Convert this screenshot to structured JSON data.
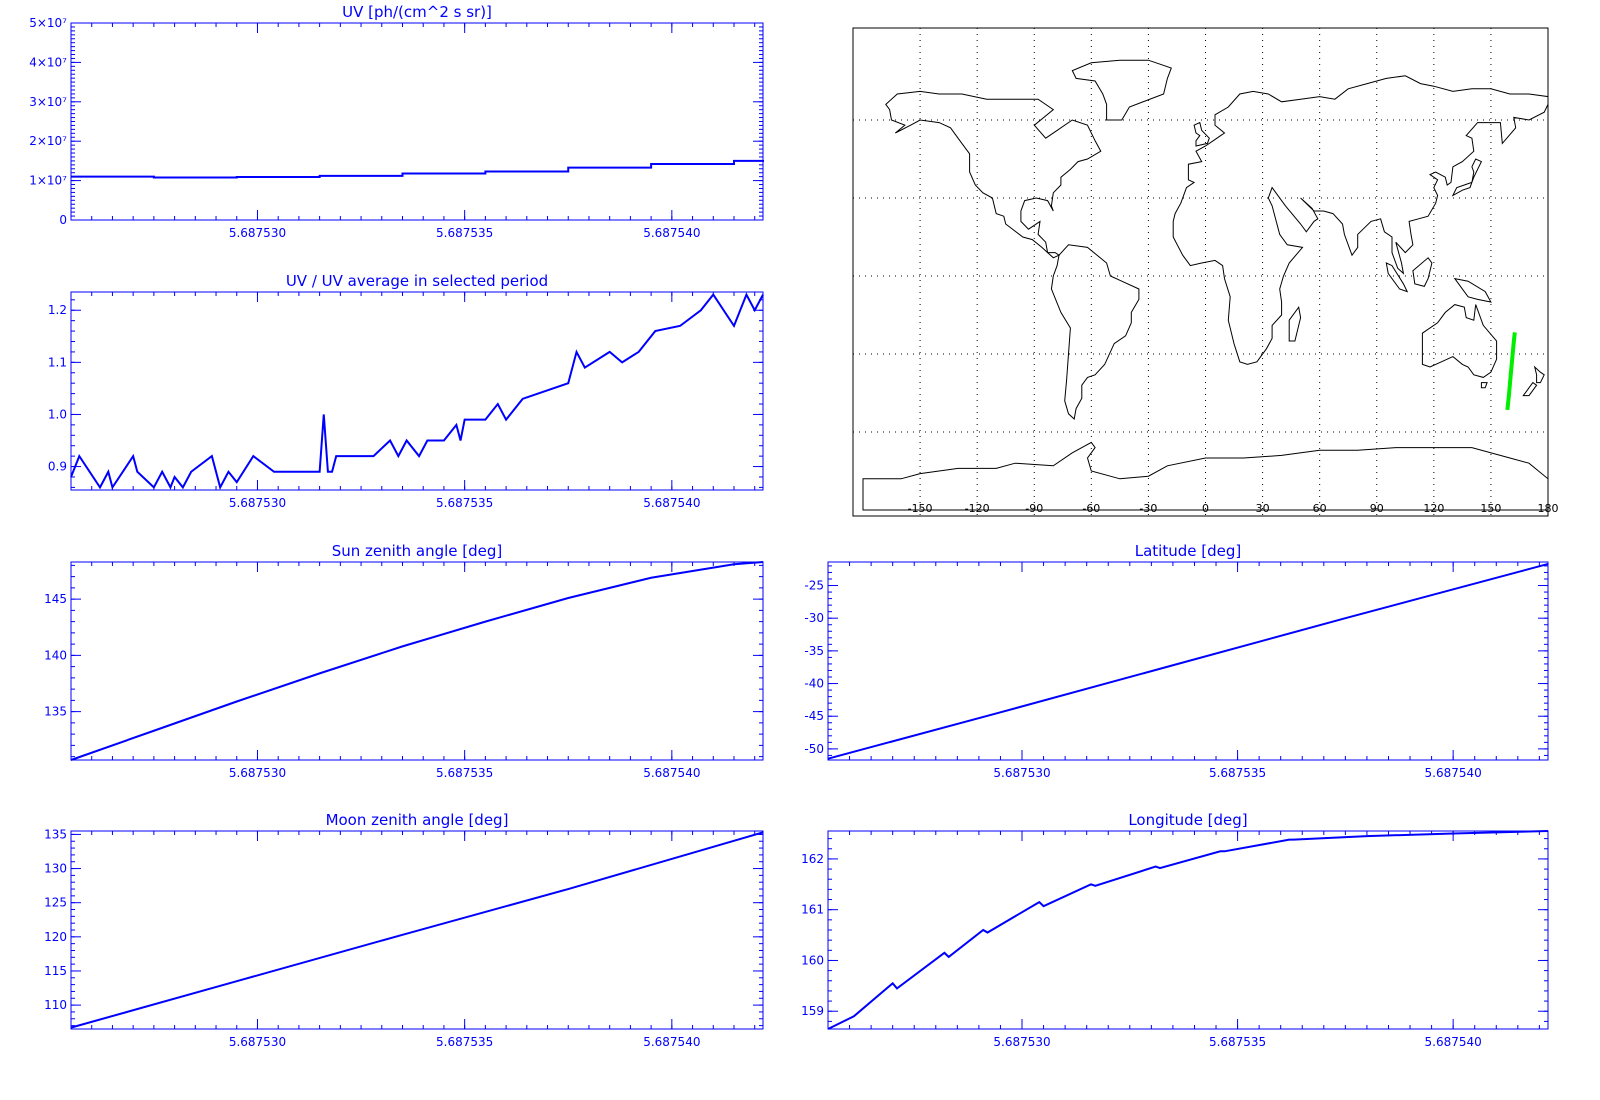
{
  "chart_data": [
    {
      "id": "uv",
      "type": "line",
      "step": true,
      "title": "UV [ph/(cm^2 s sr)]",
      "xlim": [
        5.6875255,
        5.6875422
      ],
      "ylim": [
        0,
        50000000
      ],
      "xticks": [
        5.68753,
        5.687535,
        5.68754
      ],
      "xticklabels": [
        "5.687530",
        "5.687535",
        "5.687540"
      ],
      "yticks": [
        0,
        10000000,
        20000000,
        30000000,
        40000000,
        50000000
      ],
      "yticklabels": [
        "0",
        "1×10⁷",
        "2×10⁷",
        "3×10⁷",
        "4×10⁷",
        "5×10⁷"
      ],
      "x": [
        5.6875255,
        5.6875275,
        5.6875295,
        5.6875315,
        5.6875335,
        5.6875355,
        5.6875375,
        5.6875395,
        5.6875415,
        5.6875422
      ],
      "y": [
        11000000,
        10800000,
        10900000,
        11200000,
        11800000,
        12300000,
        13300000,
        14200000,
        15000000,
        15200000
      ]
    },
    {
      "id": "uv-ratio",
      "type": "line",
      "title": "UV / UV average in selected period",
      "xlim": [
        5.6875255,
        5.6875422
      ],
      "ylim": [
        0.855,
        1.235
      ],
      "xticks": [
        5.68753,
        5.687535,
        5.68754
      ],
      "xticklabels": [
        "5.687530",
        "5.687535",
        "5.687540"
      ],
      "yticks": [
        0.9,
        1.0,
        1.1,
        1.2
      ],
      "yticklabels": [
        "0.9",
        "1.0",
        "1.1",
        "1.2"
      ],
      "x": [
        5.6875255,
        5.6875257,
        5.6875262,
        5.6875264,
        5.6875265,
        5.687527,
        5.6875271,
        5.6875275,
        5.6875277,
        5.6875279,
        5.687528,
        5.6875282,
        5.6875284,
        5.6875289,
        5.6875291,
        5.6875293,
        5.6875295,
        5.6875299,
        5.6875304,
        5.6875306,
        5.6875309,
        5.6875315,
        5.6875316,
        5.6875317,
        5.6875318,
        5.6875319,
        5.6875321,
        5.6875328,
        5.6875332,
        5.6875334,
        5.6875336,
        5.6875339,
        5.6875341,
        5.6875345,
        5.6875348,
        5.6875349,
        5.687535,
        5.6875355,
        5.6875358,
        5.687536,
        5.6875364,
        5.6875375,
        5.6875377,
        5.6875379,
        5.6875385,
        5.6875388,
        5.6875392,
        5.6875396,
        5.6875402,
        5.6875407,
        5.687541,
        5.6875415,
        5.6875418,
        5.687542,
        5.6875422
      ],
      "y": [
        0.88,
        0.92,
        0.86,
        0.89,
        0.86,
        0.92,
        0.89,
        0.86,
        0.89,
        0.86,
        0.88,
        0.86,
        0.89,
        0.92,
        0.86,
        0.89,
        0.87,
        0.92,
        0.89,
        0.89,
        0.89,
        0.89,
        1.0,
        0.89,
        0.89,
        0.92,
        0.92,
        0.92,
        0.95,
        0.92,
        0.95,
        0.92,
        0.95,
        0.95,
        0.98,
        0.95,
        0.99,
        0.99,
        1.02,
        0.99,
        1.03,
        1.06,
        1.12,
        1.09,
        1.12,
        1.1,
        1.12,
        1.16,
        1.17,
        1.2,
        1.23,
        1.17,
        1.23,
        1.2,
        1.23
      ]
    },
    {
      "id": "sun-zenith",
      "type": "line",
      "title": "Sun zenith angle [deg]",
      "xlim": [
        5.6875255,
        5.6875422
      ],
      "ylim": [
        130.7,
        148.3
      ],
      "xticks": [
        5.68753,
        5.687535,
        5.68754
      ],
      "xticklabels": [
        "5.687530",
        "5.687535",
        "5.687540"
      ],
      "yticks": [
        135,
        140,
        145
      ],
      "yticklabels": [
        "135",
        "140",
        "145"
      ],
      "x": [
        5.6875255,
        5.6875275,
        5.6875295,
        5.6875315,
        5.6875335,
        5.6875355,
        5.6875375,
        5.6875395,
        5.6875415,
        5.6875422
      ],
      "y": [
        130.7,
        133.3,
        135.9,
        138.4,
        140.8,
        143.0,
        145.1,
        146.9,
        148.1,
        148.3
      ]
    },
    {
      "id": "moon-zenith",
      "type": "line",
      "title": "Moon zenith angle [deg]",
      "xlim": [
        5.6875255,
        5.6875422
      ],
      "ylim": [
        106.5,
        135.5
      ],
      "xticks": [
        5.68753,
        5.687535,
        5.68754
      ],
      "xticklabels": [
        "5.687530",
        "5.687535",
        "5.687540"
      ],
      "yticks": [
        110,
        115,
        120,
        125,
        130,
        135
      ],
      "yticklabels": [
        "110",
        "115",
        "120",
        "125",
        "130",
        "135"
      ],
      "x": [
        5.6875255,
        5.6875295,
        5.6875335,
        5.6875375,
        5.6875422
      ],
      "y": [
        106.7,
        113.5,
        120.3,
        127.0,
        135.3
      ]
    },
    {
      "id": "latitude",
      "type": "line",
      "title": "Latitude [deg]",
      "xlim": [
        5.6875255,
        5.6875422
      ],
      "ylim": [
        -51.7,
        -21.4
      ],
      "xticks": [
        5.68753,
        5.687535,
        5.68754
      ],
      "xticklabels": [
        "5.687530",
        "5.687535",
        "5.687540"
      ],
      "yticks": [
        -50,
        -45,
        -40,
        -35,
        -30,
        -25
      ],
      "yticklabels": [
        "-50",
        "-45",
        "-40",
        "-35",
        "-30",
        "-25"
      ],
      "x": [
        5.6875255,
        5.6875295,
        5.6875335,
        5.6875375,
        5.6875422
      ],
      "y": [
        -51.5,
        -44.4,
        -37.2,
        -30.0,
        -21.7
      ]
    },
    {
      "id": "longitude",
      "type": "line",
      "title": "Longitude [deg]",
      "xlim": [
        5.6875255,
        5.6875422
      ],
      "ylim": [
        158.65,
        162.55
      ],
      "xticks": [
        5.68753,
        5.687535,
        5.68754
      ],
      "xticklabels": [
        "5.687530",
        "5.687535",
        "5.687540"
      ],
      "yticks": [
        159,
        160,
        161,
        162
      ],
      "yticklabels": [
        "159",
        "160",
        "161",
        "162"
      ],
      "x": [
        5.6875255,
        5.6875261,
        5.687527,
        5.6875271,
        5.6875282,
        5.6875283,
        5.6875291,
        5.6875292,
        5.6875304,
        5.6875305,
        5.6875316,
        5.6875317,
        5.6875331,
        5.6875332,
        5.6875346,
        5.6875347,
        5.6875362,
        5.6875363,
        5.687538,
        5.68754,
        5.6875422
      ],
      "y": [
        158.65,
        158.9,
        159.55,
        159.45,
        160.15,
        160.07,
        160.6,
        160.55,
        161.15,
        161.07,
        161.5,
        161.47,
        161.85,
        161.82,
        162.15,
        162.15,
        162.38,
        162.38,
        162.45,
        162.5,
        162.55
      ]
    },
    {
      "id": "ground-track-map",
      "type": "scatter",
      "xlim": [
        -180,
        180
      ],
      "ylim": [
        -90,
        90
      ],
      "xticks": [
        -150,
        -120,
        -90,
        -60,
        -30,
        0,
        30,
        60,
        90,
        120,
        150,
        180
      ],
      "xticklabels": [
        "-150",
        "-120",
        "-90",
        "-60",
        "-30",
        "0",
        "30",
        "60",
        "90",
        "120",
        "150",
        "180"
      ],
      "track_lon": [
        158.65,
        159.5,
        160.3,
        161.2,
        161.9,
        162.55
      ],
      "track_lat": [
        -51.5,
        -45.5,
        -39.0,
        -32.0,
        -26.0,
        -21.7
      ],
      "track_color": "#00ee00",
      "grid": true
    }
  ]
}
